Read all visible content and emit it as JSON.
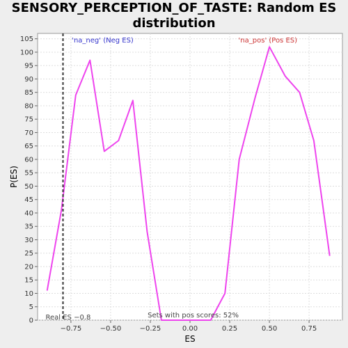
{
  "chart_data": {
    "type": "line",
    "title_line1": "SENSORY_PERCEPTION_OF_TASTE: Random ES",
    "title_line2": "distribution",
    "xlabel": "ES",
    "ylabel": "P(ES)",
    "xlim": [
      -0.96,
      0.96
    ],
    "ylim": [
      0,
      107
    ],
    "x_ticks": [
      -0.75,
      -0.5,
      -0.25,
      0.0,
      0.25,
      0.5,
      0.75
    ],
    "x_tick_labels": [
      "−0.75",
      "−0.50",
      "−0.25",
      "0.00",
      "0.25",
      "0.50",
      "0.75"
    ],
    "y_ticks": [
      0,
      5,
      10,
      15,
      20,
      25,
      30,
      35,
      40,
      45,
      50,
      55,
      60,
      65,
      70,
      75,
      80,
      85,
      90,
      95,
      100,
      105
    ],
    "grid": true,
    "series": [
      {
        "color": "#ee44ee",
        "x": [
          -0.9,
          -0.81,
          -0.72,
          -0.63,
          -0.54,
          -0.45,
          -0.36,
          -0.27,
          -0.18,
          -0.09,
          0.0,
          0.13,
          0.22,
          0.31,
          0.41,
          0.5,
          0.6,
          0.69,
          0.78,
          0.88
        ],
        "y": [
          11,
          41,
          84,
          97,
          63,
          67,
          82,
          33,
          0,
          0,
          0,
          0,
          10,
          60,
          83,
          102,
          91,
          85,
          67,
          24
        ]
      }
    ],
    "real_es": -0.8,
    "real_es_label": "Real ES −0.8",
    "neg_label": "'na_neg' (Neg ES)",
    "neg_color": "#3333cc",
    "pos_label": "'na_pos' (Pos ES)",
    "pos_color": "#cc3333",
    "footer_note": "Sets with pos scores: 52%"
  }
}
